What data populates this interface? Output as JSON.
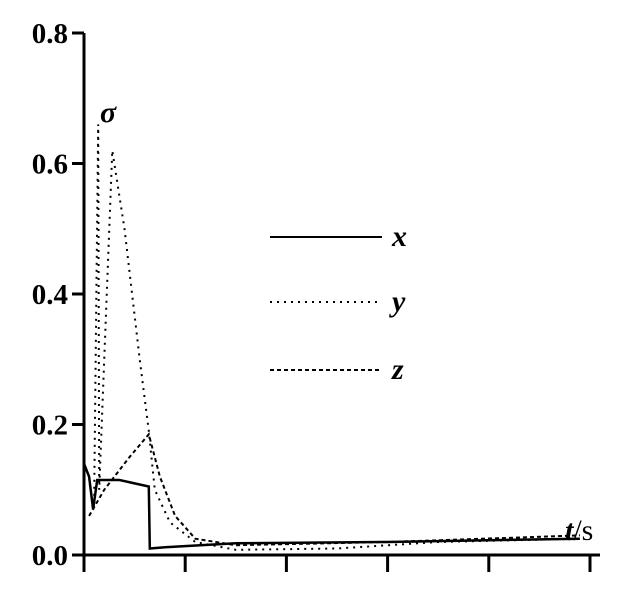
{
  "chart_data": {
    "type": "line",
    "title": "",
    "xlabel_var": "t",
    "xlabel_unit": "/s",
    "ylabel": "σ",
    "ylim": [
      0,
      0.8
    ],
    "yticks": [
      "0.0",
      "0.2",
      "0.4",
      "0.6",
      "0.8"
    ],
    "xlim": [
      0,
      5
    ],
    "xticks_count": 6,
    "xtick_labels_shown": false,
    "grid": false,
    "legend_placement": "center-right",
    "series": [
      {
        "name": "x",
        "style": "solid",
        "color": "#000000",
        "points": [
          [
            0,
            0.14
          ],
          [
            0.05,
            0.12
          ],
          [
            0.09,
            0.07
          ],
          [
            0.13,
            0.115
          ],
          [
            0.35,
            0.115
          ],
          [
            0.64,
            0.105
          ],
          [
            0.65,
            0.01
          ],
          [
            0.8,
            0.012
          ],
          [
            1.5,
            0.018
          ],
          [
            3,
            0.02
          ],
          [
            4.9,
            0.025
          ]
        ]
      },
      {
        "name": "y",
        "style": "dotted",
        "color": "#000000",
        "points": [
          [
            0.1,
            0.08
          ],
          [
            0.14,
            0.66
          ],
          [
            0.15,
            0.1
          ],
          [
            0.28,
            0.62
          ],
          [
            0.4,
            0.5
          ],
          [
            0.55,
            0.3
          ],
          [
            0.64,
            0.19
          ],
          [
            0.7,
            0.1
          ],
          [
            0.85,
            0.05
          ],
          [
            1.1,
            0.02
          ],
          [
            1.5,
            0.008
          ],
          [
            2.5,
            0.01
          ],
          [
            3.5,
            0.02
          ],
          [
            4.9,
            0.025
          ]
        ]
      },
      {
        "name": "z",
        "style": "dashed",
        "color": "#000000",
        "points": [
          [
            0.05,
            0.06
          ],
          [
            0.2,
            0.1
          ],
          [
            0.45,
            0.15
          ],
          [
            0.64,
            0.185
          ],
          [
            0.75,
            0.12
          ],
          [
            0.9,
            0.06
          ],
          [
            1.1,
            0.025
          ],
          [
            1.5,
            0.015
          ],
          [
            3,
            0.02
          ],
          [
            4.9,
            0.03
          ]
        ]
      }
    ]
  }
}
